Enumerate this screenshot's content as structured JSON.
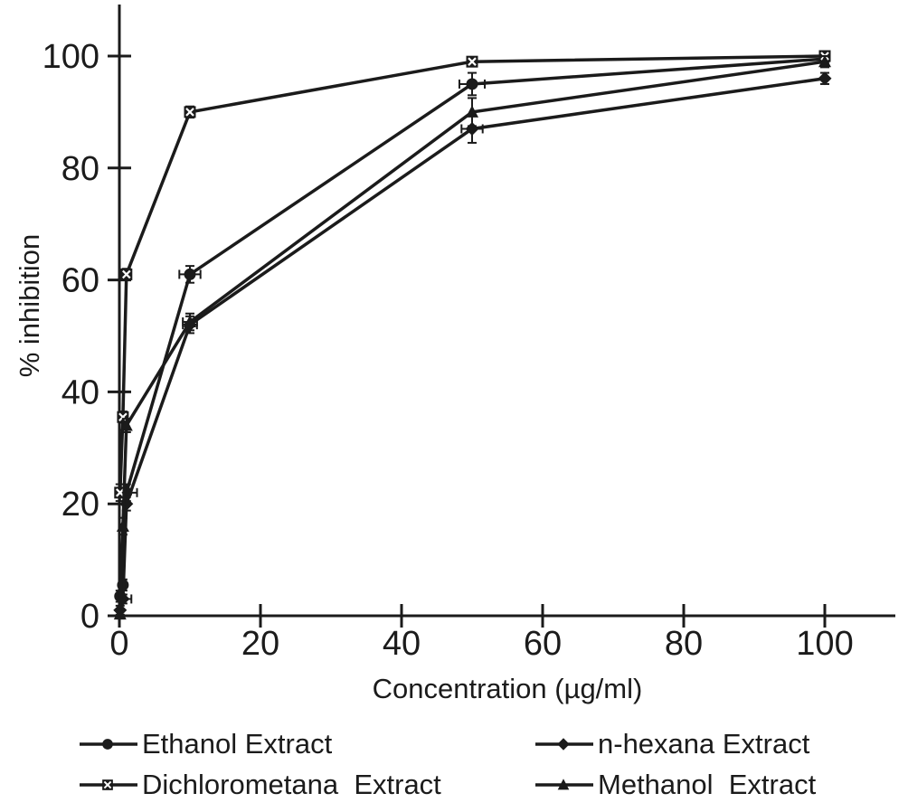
{
  "figure": {
    "background": "#ffffff",
    "ink": "#1b1b1b"
  },
  "chart_data": {
    "type": "line",
    "title": "",
    "xlabel": "Concentration (µg/ml)",
    "ylabel": "% inhibition",
    "grid": false,
    "legend_position": "bottom",
    "xlim": [
      0,
      110
    ],
    "ylim": [
      0,
      109
    ],
    "x_ticks": [
      0,
      20,
      40,
      60,
      80,
      100
    ],
    "y_ticks": [
      0,
      20,
      40,
      60,
      80,
      100
    ],
    "x": [
      0.1,
      0.5,
      1,
      10,
      50,
      100
    ],
    "series": [
      {
        "name": "Ethanol Extract",
        "marker": "circle",
        "values": [
          3.5,
          5.5,
          22,
          61,
          95,
          99.5
        ],
        "x_err": [
          0,
          0,
          1.5,
          1.5,
          1.8,
          0
        ],
        "y_err": [
          1,
          1,
          1.5,
          1.5,
          2,
          1
        ]
      },
      {
        "name": "n-hexana Extract",
        "marker": "diamond",
        "values": [
          1,
          3,
          20,
          52,
          87,
          96
        ],
        "x_err": [
          0,
          1.2,
          0,
          1,
          1.5,
          0
        ],
        "y_err": [
          0.8,
          0.8,
          1.2,
          1.5,
          2.5,
          1
        ]
      },
      {
        "name": "Dichlorometana  Extract",
        "marker": "x-square",
        "values": [
          22,
          35.5,
          61,
          90,
          99,
          100
        ],
        "x_err": [
          0,
          0,
          0,
          0,
          0,
          0
        ],
        "y_err": [
          1.5,
          1,
          1,
          1,
          0.8,
          0.8
        ]
      },
      {
        "name": "Methanol  Extract",
        "marker": "triangle",
        "values": [
          0.3,
          16,
          34,
          52.5,
          90,
          99
        ],
        "x_err": [
          0,
          0,
          0,
          1,
          0,
          0
        ],
        "y_err": [
          0.8,
          1.5,
          1.2,
          1.5,
          2.5,
          1
        ]
      }
    ]
  },
  "legend": {
    "rows": [
      [
        "Ethanol Extract",
        "n-hexana Extract"
      ],
      [
        "Dichlorometana  Extract",
        "Methanol  Extract"
      ]
    ]
  }
}
